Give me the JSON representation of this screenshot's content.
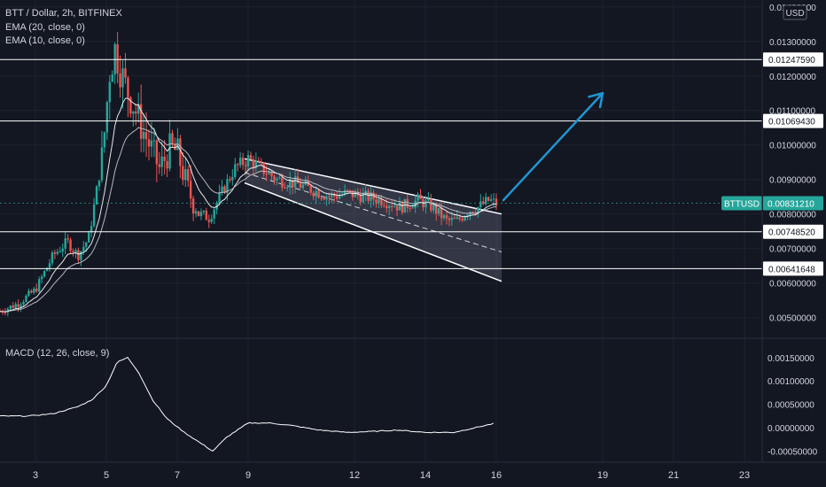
{
  "header": {
    "symbol_line": "BTT / Dollar, 2h, BITFINEX",
    "ema20": "EMA (20, close, 0)",
    "ema10": "EMA (10, close, 0)",
    "macd": "MACD (12, 26, close, 9)"
  },
  "currency_badge": "USD",
  "x_ticks": [
    "3",
    "5",
    "7",
    "9",
    "12",
    "14",
    "16",
    "19",
    "21",
    "23"
  ],
  "price_axis_ticks": [
    "0.01400000",
    "0.01300000",
    "0.01200000",
    "0.01100000",
    "0.01000000",
    "0.00900000",
    "0.00800000",
    "0.00700000",
    "0.00600000",
    "0.00500000"
  ],
  "macd_axis_ticks": [
    "0.00150000",
    "0.00100000",
    "0.00050000",
    "0.00000000",
    "-0.00050000"
  ],
  "horizontal_levels": [
    {
      "label": "0.01247590",
      "value": 0.0124759
    },
    {
      "label": "0.01069430",
      "value": 0.0106943
    },
    {
      "label": "0.00748520",
      "value": 0.0074852
    },
    {
      "label": "0.00641648",
      "value": 0.00641648
    }
  ],
  "current_price": {
    "label": "0.00831210",
    "value": 0.0083121,
    "ticker": "BTTUSD"
  },
  "colors": {
    "background": "#131722",
    "up": "#26a69a",
    "down": "#ef5350",
    "level_line": "#ffffff",
    "arrow": "#2196d3",
    "channel_fill": "#8a8aa0",
    "badge": "#26a69a",
    "grid": "#1e222d",
    "text": "#d1d4dc"
  },
  "chart_data": {
    "type": "candlestick",
    "title": "BTT / Dollar, 2h, BITFINEX",
    "x_range": [
      2,
      23.5
    ],
    "price_range": [
      0.0044,
      0.0142
    ],
    "macd_range": [
      -0.0007,
      0.0018
    ],
    "price_path": [
      [
        2.0,
        0.00518
      ],
      [
        2.5,
        0.0054
      ],
      [
        3.0,
        0.0058
      ],
      [
        3.5,
        0.0068
      ],
      [
        3.9,
        0.0072
      ],
      [
        4.2,
        0.0068
      ],
      [
        4.5,
        0.0073
      ],
      [
        4.7,
        0.0085
      ],
      [
        4.9,
        0.0098
      ],
      [
        5.1,
        0.0122
      ],
      [
        5.25,
        0.0128
      ],
      [
        5.5,
        0.0118
      ],
      [
        5.75,
        0.0112
      ],
      [
        6.0,
        0.0105
      ],
      [
        6.3,
        0.0098
      ],
      [
        6.5,
        0.0093
      ],
      [
        6.8,
        0.0099
      ],
      [
        7.0,
        0.0098
      ],
      [
        7.3,
        0.0087
      ],
      [
        7.6,
        0.008
      ],
      [
        7.9,
        0.0079
      ],
      [
        8.2,
        0.0085
      ],
      [
        8.6,
        0.0093
      ],
      [
        9.0,
        0.0096
      ],
      [
        9.4,
        0.0093
      ],
      [
        9.8,
        0.009
      ],
      [
        10.3,
        0.0089
      ],
      [
        10.8,
        0.0087
      ],
      [
        11.3,
        0.0085
      ],
      [
        11.8,
        0.0086
      ],
      [
        12.3,
        0.0085
      ],
      [
        12.8,
        0.0084
      ],
      [
        13.3,
        0.0082
      ],
      [
        13.8,
        0.0084
      ],
      [
        14.2,
        0.0082
      ],
      [
        14.6,
        0.0078
      ],
      [
        14.9,
        0.0078
      ],
      [
        15.2,
        0.0081
      ],
      [
        15.5,
        0.0082
      ],
      [
        15.8,
        0.0084
      ],
      [
        16.0,
        0.0083
      ]
    ],
    "ema_note": "EMA (20, close, 0) and EMA (10, close, 0) overlays",
    "descending_channel": {
      "upper": [
        [
          8.9,
          0.0096
        ],
        [
          16.15,
          0.008
        ]
      ],
      "lower": [
        [
          8.9,
          0.0089
        ],
        [
          16.15,
          0.00605
        ]
      ],
      "middle": [
        [
          8.9,
          0.0092
        ],
        [
          16.15,
          0.0069
        ]
      ]
    },
    "arrow": {
      "from": [
        16.2,
        0.0084
      ],
      "to": [
        19.0,
        0.0115
      ]
    },
    "macd_series": [
      [
        2.0,
        0.00025
      ],
      [
        2.8,
        0.00025
      ],
      [
        3.5,
        0.0003
      ],
      [
        4.2,
        0.00045
      ],
      [
        4.6,
        0.0006
      ],
      [
        5.0,
        0.0009
      ],
      [
        5.3,
        0.0014
      ],
      [
        5.6,
        0.0015
      ],
      [
        5.9,
        0.0012
      ],
      [
        6.3,
        0.0006
      ],
      [
        6.7,
        0.0002
      ],
      [
        7.2,
        -0.0001
      ],
      [
        7.6,
        -0.0003
      ],
      [
        8.0,
        -0.0005
      ],
      [
        8.4,
        -0.0002
      ],
      [
        9.0,
        0.0001
      ],
      [
        9.6,
        0.0001
      ],
      [
        10.2,
        5e-05
      ],
      [
        11.0,
        -5e-05
      ],
      [
        11.8,
        -0.0001
      ],
      [
        12.5,
        -8e-05
      ],
      [
        13.2,
        -5e-05
      ],
      [
        14.0,
        -0.0001
      ],
      [
        14.8,
        -0.0001
      ],
      [
        15.4,
        0.0
      ],
      [
        16.0,
        0.0001
      ]
    ]
  }
}
